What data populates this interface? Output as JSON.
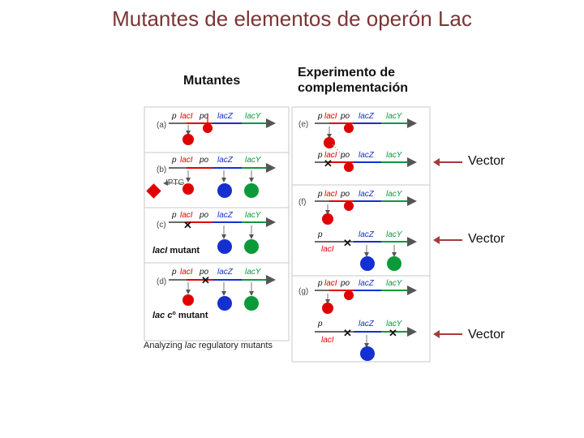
{
  "title": "Mutantes de elementos de operón Lac",
  "headers": {
    "left": "Mutantes",
    "right_line1": "Experimento de",
    "right_line2": "complementación"
  },
  "caption_pre": "Analyzing ",
  "caption_em": "lac",
  "caption_post": " regulatory mutants",
  "vector_label": "Vector",
  "gene_labels": {
    "p": "p",
    "laci": "lacI",
    "po": "po",
    "lacz": "lacZ",
    "lacy": "lacY"
  },
  "panel_tags": [
    "(a)",
    "(b)",
    "(c)",
    "(d)",
    "(e)",
    "(f)",
    "(g)"
  ],
  "iptg": "IPTG",
  "mutant_labels": {
    "c_em": "lacI",
    "c_rest": " mutant",
    "d_em": "lac",
    "d_sup": "c",
    "d_sup2": "o",
    "d_rest": " mutant"
  },
  "colors": {
    "title": "#7b3535",
    "repressor": "#e00000",
    "lacz": "#1530d0",
    "lacy": "#0b9a3a",
    "pointer": "#a83a3a"
  }
}
